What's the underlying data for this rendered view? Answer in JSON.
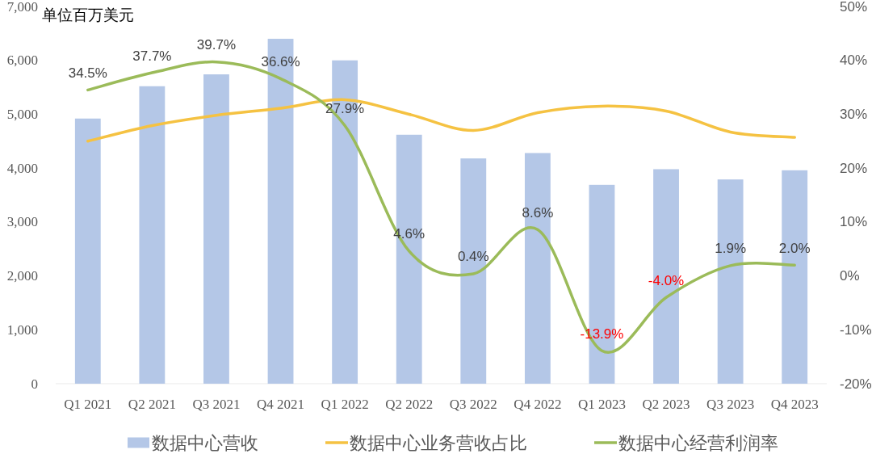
{
  "chart_data": {
    "type": "bar",
    "categories": [
      "Q1 2021",
      "Q2 2021",
      "Q3 2021",
      "Q4 2021",
      "Q1 2022",
      "Q2 2022",
      "Q3 2022",
      "Q4 2022",
      "Q1 2023",
      "Q2 2023",
      "Q3 2023",
      "Q4 2023"
    ],
    "ylabel": "单位百万美元",
    "ylim": [
      0,
      7000
    ],
    "yticks": [
      0,
      {
        "value": 1000,
        "label": "1,000"
      },
      {
        "value": 2000,
        "label": "2,000"
      },
      {
        "value": 3000,
        "label": "3,000"
      },
      {
        "value": 4000,
        "label": "4,000"
      },
      {
        "value": 5000,
        "label": "5,000"
      },
      {
        "value": 6000,
        "label": "6,000"
      },
      {
        "value": 7000,
        "label": "7,000"
      }
    ],
    "y2lim": [
      -20,
      50
    ],
    "y2ticks": [
      {
        "value": -20,
        "label": "-20%"
      },
      {
        "value": -10,
        "label": "-10%"
      },
      {
        "value": 0,
        "label": "0%"
      },
      {
        "value": 10,
        "label": "10%"
      },
      {
        "value": 20,
        "label": "20%"
      },
      {
        "value": 30,
        "label": "30%"
      },
      {
        "value": 40,
        "label": "40%"
      },
      {
        "value": 50,
        "label": "50%"
      }
    ],
    "series": [
      {
        "name": "数据中心营收",
        "color": "#b4c7e7",
        "values": [
          4920,
          5520,
          5740,
          6400,
          6000,
          4620,
          4180,
          4280,
          3690,
          3980,
          3790,
          3960
        ]
      },
      {
        "name": "数据中心业务营收占比",
        "type": "line",
        "axis": "y2",
        "color": "#f5c242",
        "values": [
          25.0,
          27.9,
          29.8,
          31.1,
          32.7,
          30.0,
          27.0,
          30.3,
          31.5,
          30.6,
          26.7,
          25.7
        ]
      },
      {
        "name": "数据中心经营利润率",
        "type": "line",
        "axis": "y2",
        "color": "#9bbb59",
        "values": [
          34.5,
          37.7,
          39.7,
          36.6,
          27.9,
          4.6,
          0.4,
          8.6,
          -13.9,
          -4.0,
          1.9,
          2.0
        ],
        "value_labels": [
          "34.5%",
          "37.7%",
          "39.7%",
          "36.6%",
          "27.9%",
          "4.6%",
          "0.4%",
          "8.6%",
          "-13.9%",
          "-4.0%",
          "1.9%",
          "2.0%"
        ]
      }
    ],
    "legend": "bottom"
  }
}
